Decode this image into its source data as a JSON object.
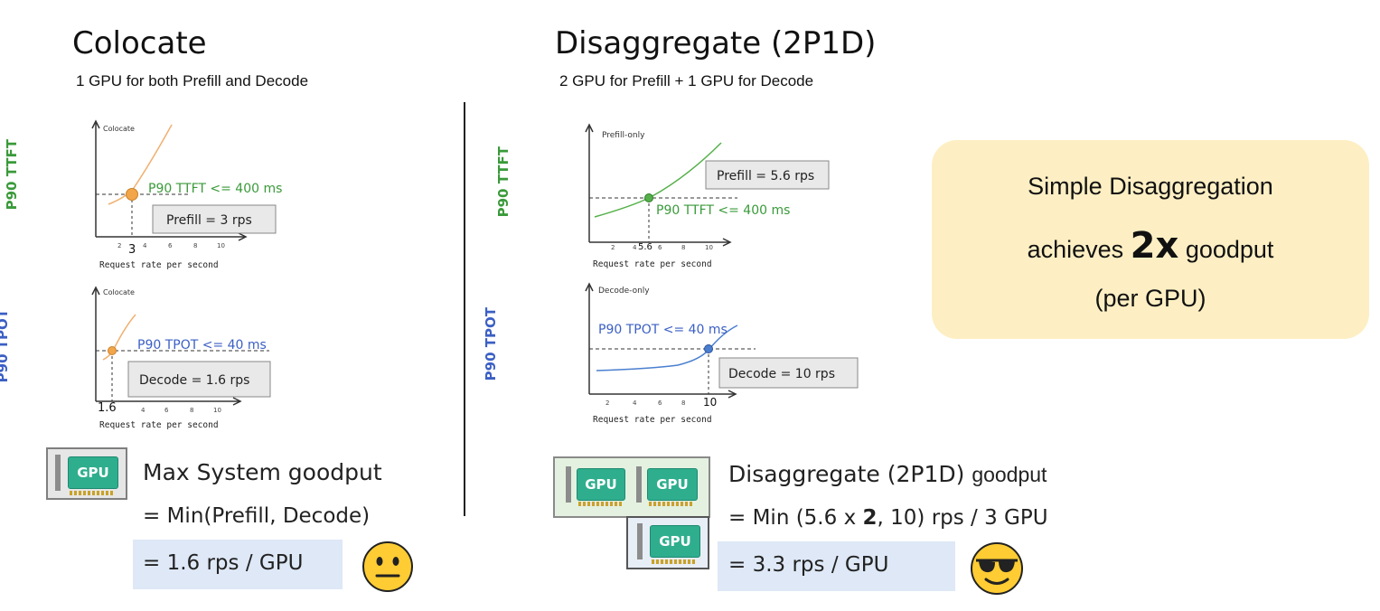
{
  "left": {
    "title": "Colocate",
    "subtitle": "1 GPU for both Prefill and Decode",
    "ttft_chart": {
      "panel_label": "Colocate",
      "ylabel": "P90 TTFT",
      "xlabel": "Request rate per second",
      "ticks": [
        "2",
        "4",
        "6",
        "8",
        "10"
      ],
      "highlight_tick": "3",
      "slo_label": "P90 TTFT <= 400 ms",
      "box_label": "Prefill = 3 rps"
    },
    "tpot_chart": {
      "panel_label": "Colocate",
      "ylabel": "P90 TPOT",
      "xlabel": "Request rate per second",
      "ticks": [
        "4",
        "6",
        "8",
        "10"
      ],
      "highlight_tick": "1.6",
      "slo_label": "P90 TPOT <= 40 ms",
      "box_label": "Decode = 1.6 rps"
    },
    "gpu_label": "GPU",
    "goodput_title": "Max System goodput",
    "goodput_formula": "= Min(Prefill, Decode)",
    "goodput_result": "= 1.6 rps / GPU",
    "emoji": "neutral-face"
  },
  "right": {
    "title": "Disaggregate (2P1D)",
    "subtitle": "2 GPU for Prefill + 1 GPU for Decode",
    "ttft_chart": {
      "panel_label": "Prefill-only",
      "ylabel": "P90 TTFT",
      "xlabel": "Request rate per second",
      "ticks": [
        "2",
        "4",
        "6",
        "8",
        "10"
      ],
      "highlight_tick": "5.6",
      "slo_label": "P90 TTFT <= 400 ms",
      "box_label": "Prefill = 5.6 rps"
    },
    "tpot_chart": {
      "panel_label": "Decode-only",
      "ylabel": "P90 TPOT",
      "xlabel": "Request rate per second",
      "ticks": [
        "2",
        "4",
        "6",
        "8"
      ],
      "highlight_tick": "10",
      "slo_label": "P90 TPOT <= 40 ms",
      "box_label": "Decode = 10 rps"
    },
    "gpu_label": "GPU",
    "goodput_title_main": "Disaggregate (2P1D)",
    "goodput_title_suffix": "goodput",
    "goodput_formula_a": "= Min (5.6 x ",
    "goodput_formula_bold": "2",
    "goodput_formula_b": ", 10) rps / 3 GPU",
    "goodput_result": "= 3.3 rps / GPU",
    "emoji": "sunglasses-face"
  },
  "callout": {
    "line1": "Simple Disaggregation",
    "line2_pre": "achieves",
    "line2_big": "2x",
    "line2_post": "goodput",
    "line3": "(per GPU)",
    "bg_color": "#fdefc3"
  },
  "colors": {
    "ttft_green": "#3a9a3a",
    "tpot_blue": "#3b5fc4",
    "colocate_curve": "#f0b070",
    "prefill_curve": "#55b04a",
    "decode_curve": "#4a7fd0",
    "gpu_green": "#2fae8e"
  }
}
